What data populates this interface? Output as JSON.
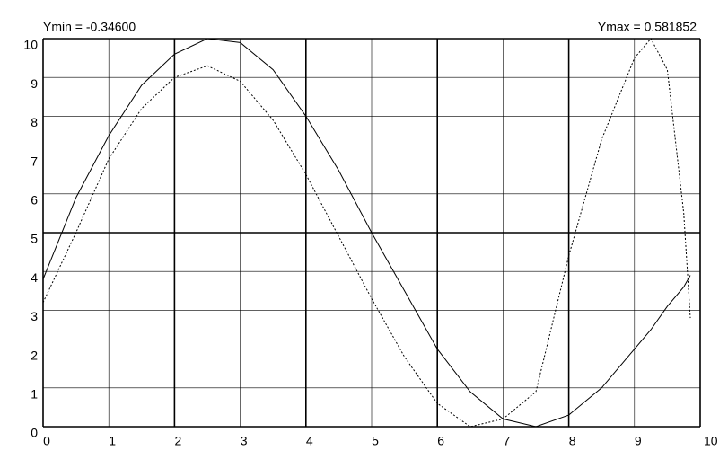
{
  "chart_data": {
    "type": "line",
    "annotations": [
      "Ymin = -0.34600",
      "Ymax = 0.581852"
    ],
    "x": [
      0,
      0.5,
      1,
      1.5,
      2,
      2.5,
      3,
      3.5,
      4,
      4.5,
      5,
      5.5,
      6,
      6.5,
      7,
      7.5,
      8,
      8.5,
      9,
      9.25,
      9.5,
      9.75,
      9.85
    ],
    "series": [
      {
        "color": "#000000",
        "dash": "none",
        "values": [
          3.8,
          5.9,
          7.5,
          8.8,
          9.6,
          10.0,
          9.9,
          9.2,
          8.0,
          6.6,
          5.0,
          3.5,
          2.0,
          0.9,
          0.2,
          0.0,
          0.3,
          1.0,
          2.0,
          2.5,
          3.1,
          3.6,
          3.9
        ]
      },
      {
        "color": "#000000",
        "dash": "2,2",
        "values": [
          3.2,
          5.0,
          6.9,
          8.2,
          9.0,
          9.3,
          8.9,
          7.9,
          6.5,
          4.9,
          3.3,
          1.8,
          0.6,
          0.0,
          0.2,
          0.9,
          4.4,
          7.4,
          9.5,
          10.0,
          9.2,
          5.5,
          2.8
        ]
      }
    ],
    "xlim": [
      0,
      10
    ],
    "ylim": [
      0,
      10
    ],
    "xticks": [
      0,
      1,
      2,
      3,
      4,
      5,
      6,
      7,
      8,
      9,
      10
    ],
    "yticks": [
      0,
      1,
      2,
      3,
      4,
      5,
      6,
      7,
      8,
      9,
      10
    ],
    "grid": true
  }
}
